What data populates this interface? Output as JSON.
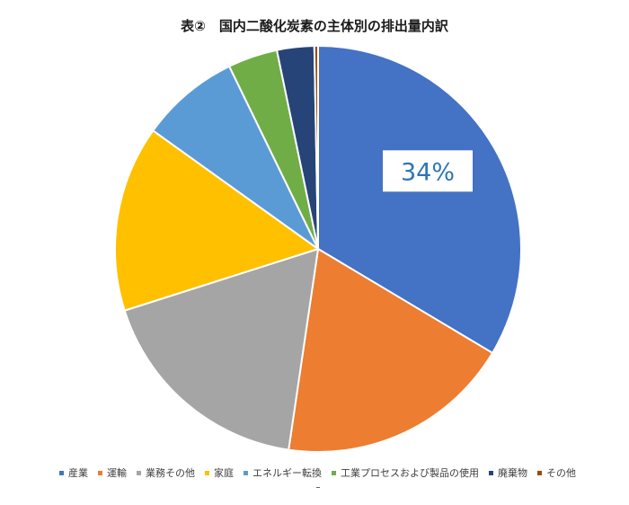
{
  "chart_data": {
    "type": "pie",
    "title": "表②　国内二酸化炭素の主体別の排出量内訳",
    "slices": [
      {
        "label": "産業",
        "value": 34,
        "color": "#4472C4"
      },
      {
        "label": "運輸",
        "value": 19,
        "color": "#ED7D31"
      },
      {
        "label": "業務その他",
        "value": 18,
        "color": "#A5A5A5"
      },
      {
        "label": "家庭",
        "value": 15,
        "color": "#FFC000"
      },
      {
        "label": "エネルギー転換",
        "value": 8,
        "color": "#5B9BD5"
      },
      {
        "label": "工業プロセスおよび製品の使用",
        "value": 4,
        "color": "#70AD47"
      },
      {
        "label": "廃棄物",
        "value": 3,
        "color": "#264478"
      },
      {
        "label": "その他",
        "value": 0.3,
        "color": "#9E480E"
      }
    ],
    "data_labels": [
      {
        "slice_index": 0,
        "text": "34%"
      }
    ],
    "legend_position": "bottom"
  }
}
